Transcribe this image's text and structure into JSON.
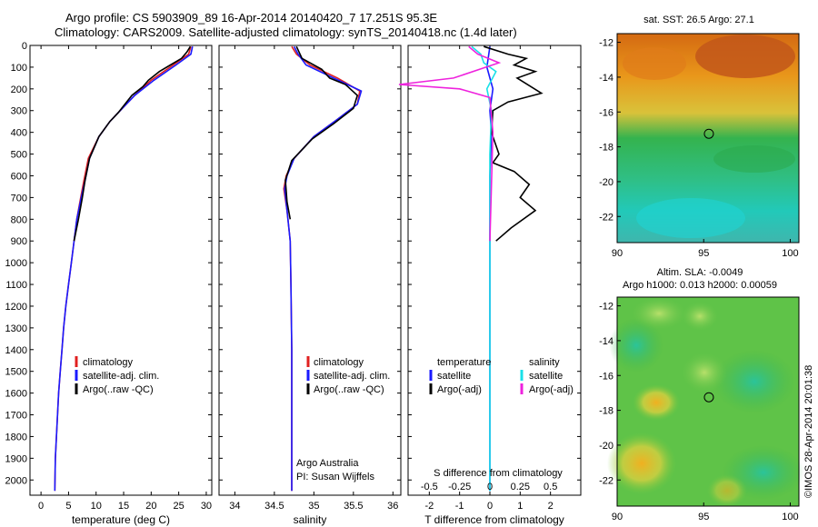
{
  "header": {
    "line1": "Argo profile: CS 5903909_89 16-Apr-2014 20140420_7 17.251S 95.3E",
    "line2": "Climatology: CARS2009. Satellite-adjusted climatology: synTS_20140418.nc (1.4d later)"
  },
  "stamp": "©IMOS 28-Apr-2014 20:01:38",
  "colors": {
    "climatology": "#e02020",
    "satellite": "#1a1aff",
    "argo": "#000000",
    "sal_satellite": "#19e0e8",
    "sal_argo": "#ee22dd"
  },
  "chart_data": [
    {
      "type": "line",
      "name": "temperature-panel",
      "xlabel": "temperature (deg C)",
      "ylabel": "",
      "xlim": [
        -2,
        31
      ],
      "ylim": [
        2070,
        0
      ],
      "xticks": [
        0,
        5,
        10,
        15,
        20,
        25,
        30
      ],
      "yticks": [
        0,
        100,
        200,
        300,
        400,
        500,
        600,
        700,
        800,
        900,
        1000,
        1100,
        1200,
        1300,
        1400,
        1500,
        1600,
        1700,
        1800,
        1900,
        2000
      ],
      "legend": {
        "placement": "center-left",
        "items": [
          "climatology",
          "satellite-adj. clim.",
          "Argo(..raw -QC)"
        ]
      },
      "series": [
        {
          "name": "climatology",
          "color": "#e02020",
          "x": [
            27.2,
            26.8,
            24,
            20,
            17,
            14,
            12.5,
            10.5,
            8.6,
            7.8,
            7.2,
            6.5,
            6.0,
            5.5,
            5.0,
            4.5,
            4.1,
            3.8,
            3.5,
            3.2,
            3.0,
            2.8,
            2.6,
            2.5
          ],
          "y": [
            5,
            40,
            90,
            160,
            230,
            310,
            350,
            420,
            520,
            620,
            700,
            800,
            900,
            1000,
            1100,
            1200,
            1300,
            1400,
            1500,
            1600,
            1700,
            1800,
            1900,
            2050
          ]
        },
        {
          "name": "satellite-adj. clim.",
          "color": "#1a1aff",
          "x": [
            27.5,
            27.2,
            24.5,
            20.5,
            17,
            14,
            12.5,
            10.5,
            8.8,
            8.0,
            7.3,
            6.5,
            6.0,
            5.5,
            5.0,
            4.5,
            4.1,
            3.8,
            3.5,
            3.2,
            3.0,
            2.8,
            2.6,
            2.5
          ],
          "y": [
            5,
            40,
            90,
            160,
            230,
            310,
            350,
            420,
            520,
            620,
            700,
            800,
            900,
            1000,
            1100,
            1200,
            1300,
            1400,
            1500,
            1600,
            1700,
            1800,
            1900,
            2050
          ]
        },
        {
          "name": "Argo(..raw -QC)",
          "color": "#000000",
          "x": [
            27.1,
            26.5,
            25.5,
            23.5,
            21.5,
            19.5,
            18.5,
            16.5,
            14,
            12.5,
            10.5,
            8.8,
            8.0,
            7.5,
            6.8,
            6.0
          ],
          "y": [
            5,
            30,
            60,
            90,
            120,
            160,
            190,
            230,
            310,
            350,
            420,
            520,
            620,
            700,
            800,
            900
          ]
        }
      ]
    },
    {
      "type": "line",
      "name": "salinity-panel",
      "xlabel": "salinity",
      "ylabel": "",
      "xlim": [
        33.8,
        36.1
      ],
      "ylim": [
        2070,
        0
      ],
      "xticks": [
        34,
        34.5,
        35,
        35.5,
        36
      ],
      "legend": {
        "placement": "center-left",
        "items": [
          "climatology",
          "satellite-adj. clim.",
          "Argo(..raw -QC)"
        ]
      },
      "annotation": [
        "Argo Australia",
        "PI: Susan Wijffels"
      ],
      "series": [
        {
          "name": "climatology",
          "color": "#e02020",
          "x": [
            34.72,
            34.78,
            34.95,
            35.3,
            35.58,
            35.55,
            35.3,
            35.0,
            34.75,
            34.65,
            34.62,
            34.66,
            34.7,
            34.71,
            34.72,
            34.72,
            34.72
          ],
          "y": [
            5,
            40,
            90,
            150,
            210,
            270,
            340,
            420,
            520,
            600,
            660,
            760,
            900,
            1100,
            1400,
            1800,
            2050
          ]
        },
        {
          "name": "satellite-adj. clim.",
          "color": "#1a1aff",
          "x": [
            34.75,
            34.8,
            34.9,
            35.25,
            35.6,
            35.55,
            35.3,
            35.0,
            34.75,
            34.66,
            34.63,
            34.66,
            34.7,
            34.71,
            34.72,
            34.72,
            34.72
          ],
          "y": [
            5,
            40,
            90,
            150,
            210,
            270,
            340,
            420,
            520,
            600,
            660,
            760,
            900,
            1100,
            1400,
            1800,
            2050
          ]
        },
        {
          "name": "Argo(..raw -QC)",
          "color": "#000000",
          "x": [
            34.78,
            34.85,
            35.1,
            35.2,
            35.4,
            35.55,
            35.5,
            35.25,
            34.98,
            34.72,
            34.64,
            34.66,
            34.7
          ],
          "y": [
            5,
            60,
            110,
            150,
            180,
            230,
            290,
            360,
            430,
            530,
            620,
            720,
            800
          ]
        }
      ]
    },
    {
      "type": "line",
      "name": "difference-panel",
      "xlabel": "T difference from climatology",
      "xlabel_top": "S difference from climatology",
      "ylabel": "",
      "xlim": [
        -2.7,
        3.0
      ],
      "ylim": [
        2070,
        0
      ],
      "xticks": [
        -2,
        -1,
        0,
        1,
        2
      ],
      "xticks_s": [
        "-0.5",
        "-0.25",
        "0",
        "0.25",
        "0.5"
      ],
      "legend": {
        "placement": "center",
        "temperature_header": "temperature",
        "salinity_header": "salinity",
        "items": [
          "satellite",
          "Argo(-adj)",
          "satellite",
          "Argo(-adj)"
        ]
      },
      "series": [
        {
          "name": "T satellite",
          "color": "#1a1aff",
          "x": [
            0.0,
            -0.1,
            0.1,
            0.0,
            0.05,
            0.0,
            0.0,
            0.0,
            0.0,
            0.0
          ],
          "y": [
            5,
            100,
            200,
            300,
            400,
            600,
            900,
            1200,
            1600,
            2050
          ]
        },
        {
          "name": "T Argo(-adj)",
          "color": "#000000",
          "x": [
            -0.2,
            0.6,
            1.2,
            0.8,
            1.5,
            0.9,
            1.7,
            0.6,
            0.1,
            0.05,
            0.3,
            0.1,
            0.8,
            1.3,
            1.0,
            1.5,
            0.7,
            0.2
          ],
          "y": [
            5,
            40,
            60,
            90,
            120,
            150,
            220,
            260,
            300,
            400,
            500,
            540,
            580,
            640,
            700,
            760,
            840,
            900
          ]
        },
        {
          "name": "S satellite",
          "color": "#19e0e8",
          "x": [
            -0.6,
            -0.3,
            -0.2,
            0.2,
            -0.1,
            0.05,
            0.0,
            0.0,
            0.0,
            0.0,
            0.0
          ],
          "y": [
            5,
            40,
            80,
            120,
            200,
            300,
            500,
            900,
            1300,
            1700,
            2050
          ]
        },
        {
          "name": "S Argo(-adj)",
          "color": "#ee22dd",
          "x": [
            -0.7,
            -0.4,
            0.3,
            -1.2,
            -3.0,
            -1.0,
            0.0,
            0.1,
            0.0
          ],
          "y": [
            5,
            40,
            80,
            150,
            180,
            200,
            240,
            400,
            900
          ]
        }
      ]
    },
    {
      "type": "heatmap",
      "name": "sst-map",
      "title": "sat. SST: 26.5 Argo: 27.1",
      "xlim": [
        90,
        100.5
      ],
      "ylim": [
        -23.5,
        -11.5
      ],
      "xticks": [
        90,
        95,
        100
      ],
      "yticks": [
        -12,
        -14,
        -16,
        -18,
        -20,
        -22
      ],
      "marker": {
        "lon": 95.3,
        "lat": -17.25
      }
    },
    {
      "type": "heatmap",
      "name": "sla-map",
      "title": "Altim. SLA: -0.0049",
      "subtitle": "Argo h1000: 0.013 h2000: 0.00059",
      "xlim": [
        90,
        100.5
      ],
      "ylim": [
        -23.5,
        -11.5
      ],
      "xticks": [
        90,
        95,
        100
      ],
      "yticks": [
        -12,
        -14,
        -16,
        -18,
        -20,
        -22
      ],
      "marker": {
        "lon": 95.3,
        "lat": -17.25
      }
    }
  ]
}
